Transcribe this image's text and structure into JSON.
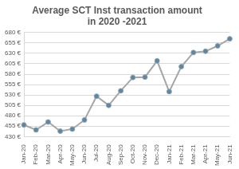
{
  "chart_data": {
    "type": "line",
    "title": [
      "Average SCT Inst transaction amount",
      "in 2020 -2021"
    ],
    "categories": [
      "Jan-20",
      "Feb-20",
      "Mar-20",
      "Apr-20",
      "May-20",
      "Jun-20",
      "Jul-20",
      "Aug-20",
      "Sep-20",
      "Oct-20",
      "Nov-20",
      "Dec-20",
      "Jan-21",
      "Feb-21",
      "Mar-21",
      "Apr-21",
      "May-21",
      "Jun-21"
    ],
    "values": [
      458,
      446,
      465,
      443,
      448,
      470,
      527,
      505,
      540,
      572,
      573,
      612,
      538,
      598,
      632,
      635,
      648,
      665
    ],
    "color": "#a6a6a6",
    "marker": "circle",
    "ylim": [
      430,
      680
    ],
    "yticks": [
      {
        "value": 430,
        "label": "430 €"
      },
      {
        "value": 455,
        "label": "455 €"
      },
      {
        "value": 480,
        "label": "480 €"
      },
      {
        "value": 505,
        "label": "505 €"
      },
      {
        "value": 530,
        "label": "530 €"
      },
      {
        "value": 555,
        "label": "555 €"
      },
      {
        "value": 580,
        "label": "580 €"
      },
      {
        "value": 605,
        "label": "605 €"
      },
      {
        "value": 630,
        "label": "630 €"
      },
      {
        "value": 655,
        "label": "655 €"
      },
      {
        "value": 680,
        "label": "680 €"
      }
    ],
    "grid": true
  }
}
